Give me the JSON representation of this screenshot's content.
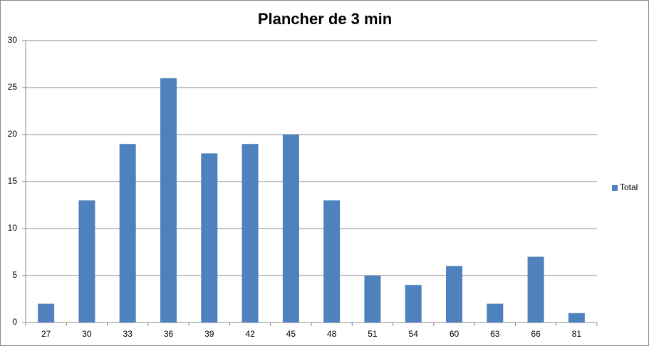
{
  "chart_data": {
    "type": "bar",
    "title": "Plancher de 3 min",
    "categories": [
      "27",
      "30",
      "33",
      "36",
      "39",
      "42",
      "45",
      "48",
      "51",
      "54",
      "60",
      "63",
      "66",
      "81"
    ],
    "series": [
      {
        "name": "Total",
        "color": "#4f81bd",
        "values": [
          2,
          13,
          19,
          26,
          18,
          19,
          20,
          13,
          5,
          4,
          6,
          2,
          7,
          1
        ]
      }
    ],
    "ylim": [
      0,
      30
    ],
    "yticks": [
      0,
      5,
      10,
      15,
      20,
      25,
      30
    ],
    "grid": true,
    "legend": "right"
  }
}
